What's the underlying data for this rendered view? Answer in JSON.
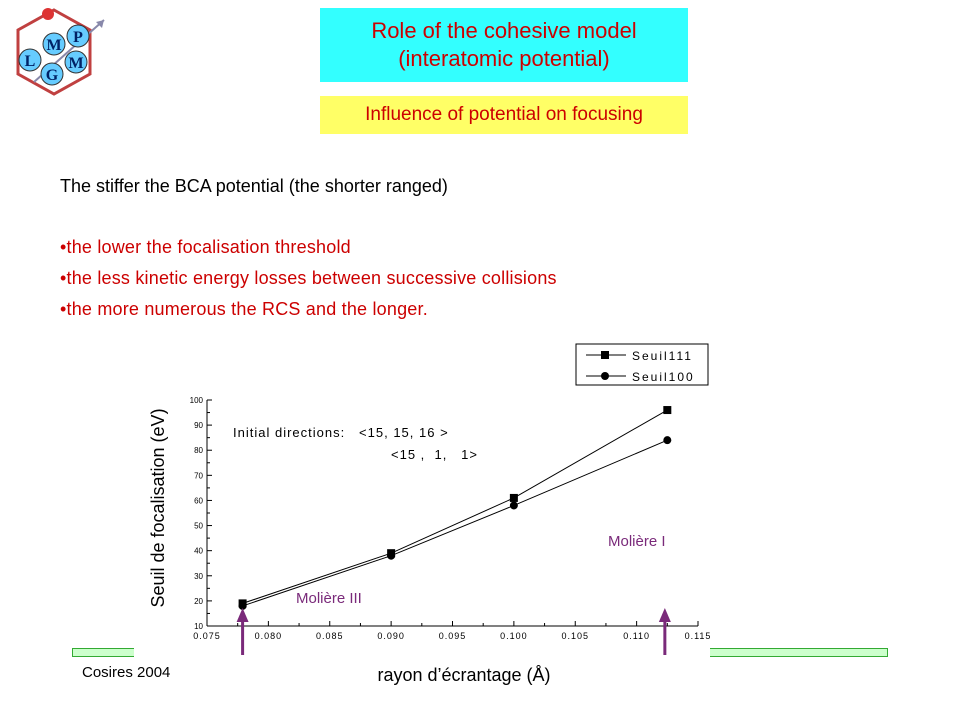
{
  "slide": {
    "title_line1": "Role of the cohesive model",
    "title_line2": "(interatomic potential)",
    "subtitle": "Influence of potential on focusing",
    "intro": "The stiffer the BCA potential (the shorter ranged)",
    "bullets": [
      "•the lower the focalisation threshold",
      "•the less kinetic energy losses between successive collisions",
      "•the more numerous the RCS and the longer."
    ],
    "footer_left": "Cosires 2004",
    "logo_letters": [
      "M",
      "P",
      "L",
      "M",
      "G"
    ]
  },
  "colors": {
    "title_bg": "#33ffff",
    "subtitle_bg": "#ffff66",
    "accent_text": "#cc0000",
    "annotation_purple": "#7a2a7a",
    "series_color": "#000000"
  },
  "chart_data": {
    "type": "line",
    "xlabel": "rayon d’écrantage (Å)",
    "ylabel": "Seuil de focalisation (eV)",
    "xlim": [
      0.075,
      0.115
    ],
    "ylim": [
      10,
      100
    ],
    "x_ticks": [
      "0.075",
      "0.080",
      "0.085",
      "0.090",
      "0.095",
      "0.100",
      "0.105",
      "0.110",
      "0.115"
    ],
    "y_ticks": [
      "10",
      "20",
      "30",
      "40",
      "50",
      "60",
      "70",
      "80",
      "90",
      "100"
    ],
    "annotation_lines": [
      "Initial directions:   <15, 15, 16 >",
      "<15 ,  1,   1>"
    ],
    "series": [
      {
        "name": "Seuil111",
        "marker": "square",
        "x": [
          0.0779,
          0.09,
          0.1,
          0.1125
        ],
        "y": [
          19,
          39,
          61,
          96
        ]
      },
      {
        "name": "Seuil100",
        "marker": "circle",
        "x": [
          0.0779,
          0.09,
          0.1,
          0.1125
        ],
        "y": [
          18,
          38,
          58,
          84
        ]
      }
    ],
    "markers": [
      {
        "label": "Molière III",
        "x": 0.0779
      },
      {
        "label": "Molière I",
        "x": 0.1123
      }
    ],
    "legend_position": "top-right",
    "grid": false
  }
}
